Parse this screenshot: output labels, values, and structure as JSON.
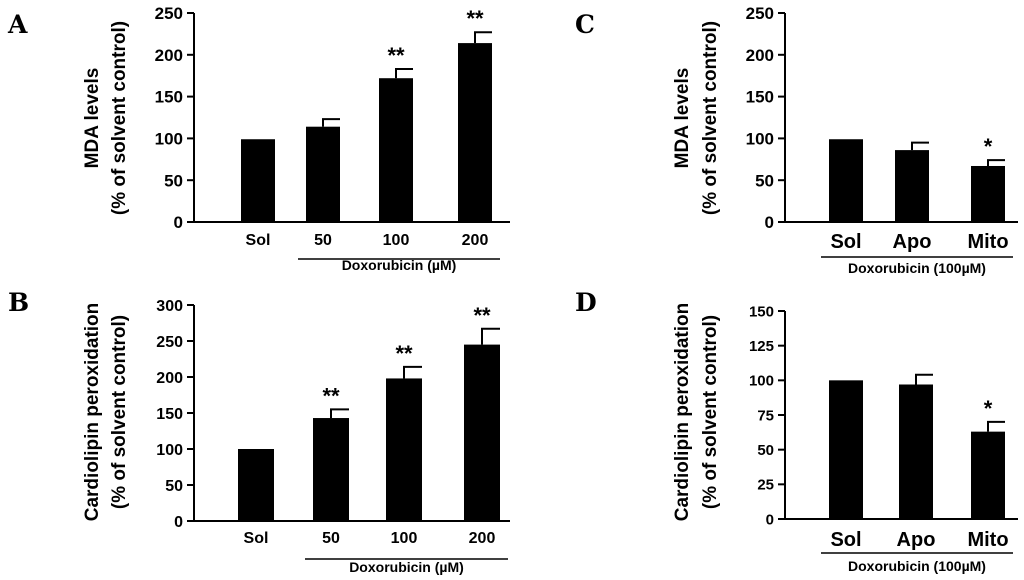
{
  "chart_data": [
    {
      "panel": "A",
      "type": "bar",
      "ylabel_line1": "MDA levels",
      "ylabel_line2": "(% of solvent control)",
      "group_label": "Doxorubicin (µM)",
      "categories": [
        "Sol",
        "50",
        "100",
        "200"
      ],
      "values": [
        99,
        114,
        172,
        214
      ],
      "errors": [
        0,
        9,
        11,
        13
      ],
      "significance": [
        "",
        "",
        "**",
        "**"
      ],
      "ylim": [
        0,
        250
      ],
      "yticks": [
        0,
        50,
        100,
        150,
        200,
        250
      ],
      "group_covers": [
        1,
        3
      ]
    },
    {
      "panel": "B",
      "type": "bar",
      "ylabel_line1": "Cardiolipin peroxidation",
      "ylabel_line2": "(% of solvent control)",
      "group_label": "Doxorubicin (µM)",
      "categories": [
        "Sol",
        "50",
        "100",
        "200"
      ],
      "values": [
        100,
        143,
        198,
        245
      ],
      "errors": [
        0,
        12,
        16,
        22
      ],
      "significance": [
        "",
        "**",
        "**",
        "**"
      ],
      "ylim": [
        0,
        300
      ],
      "yticks": [
        0,
        50,
        100,
        150,
        200,
        250,
        300
      ],
      "group_covers": [
        1,
        3
      ]
    },
    {
      "panel": "C",
      "type": "bar",
      "ylabel_line1": "MDA levels",
      "ylabel_line2": "(% of solvent control)",
      "group_label": "Doxorubicin (100µM)",
      "categories": [
        "Sol",
        "Apo",
        "Mito"
      ],
      "values": [
        99,
        86,
        67
      ],
      "errors": [
        0,
        9,
        7
      ],
      "significance": [
        "",
        "",
        "*"
      ],
      "ylim": [
        0,
        250
      ],
      "yticks": [
        0,
        50,
        100,
        150,
        200,
        250
      ],
      "group_covers": [
        0,
        2
      ]
    },
    {
      "panel": "D",
      "type": "bar",
      "ylabel_line1": "Cardiolipin peroxidation",
      "ylabel_line2": "(% of solvent control)",
      "group_label": "Doxorubicin (100µM)",
      "categories": [
        "Sol",
        "Apo",
        "Mito"
      ],
      "values": [
        100,
        97,
        63
      ],
      "errors": [
        0,
        7,
        7
      ],
      "significance": [
        "",
        "",
        "*"
      ],
      "ylim": [
        0,
        150
      ],
      "yticks": [
        0,
        25,
        50,
        75,
        100,
        125,
        150
      ],
      "group_covers": [
        0,
        2
      ]
    }
  ]
}
